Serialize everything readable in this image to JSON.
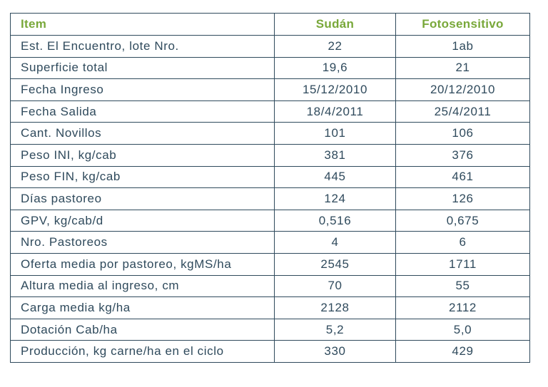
{
  "table": {
    "headers": [
      "Item",
      "Sudán",
      "Fotosensitivo"
    ],
    "rows": [
      [
        "Est. El Encuentro, lote Nro.",
        "22",
        "1ab"
      ],
      [
        "Superficie total",
        "19,6",
        "21"
      ],
      [
        "Fecha Ingreso",
        "15/12/2010",
        "20/12/2010"
      ],
      [
        "Fecha Salida",
        "18/4/2011",
        "25/4/2011"
      ],
      [
        "Cant. Novillos",
        "101",
        "106"
      ],
      [
        "Peso INI, kg/cab",
        "381",
        "376"
      ],
      [
        "Peso FIN, kg/cab",
        "445",
        "461"
      ],
      [
        "Días pastoreo",
        "124",
        "126"
      ],
      [
        "GPV, kg/cab/d",
        "0,516",
        "0,675"
      ],
      [
        "Nro. Pastoreos",
        "4",
        "6"
      ],
      [
        "Oferta media por pastoreo, kgMS/ha",
        "2545",
        "1711"
      ],
      [
        "Altura media al ingreso, cm",
        "70",
        "55"
      ],
      [
        "Carga media kg/ha",
        "2128",
        "2112"
      ],
      [
        "Dotación Cab/ha",
        "5,2",
        "5,0"
      ],
      [
        "Producción, kg carne/ha en el ciclo",
        "330",
        "429"
      ]
    ]
  },
  "colors": {
    "header_text": "#79a83a",
    "body_text": "#2f4a5c",
    "border": "#2f4a5c"
  }
}
